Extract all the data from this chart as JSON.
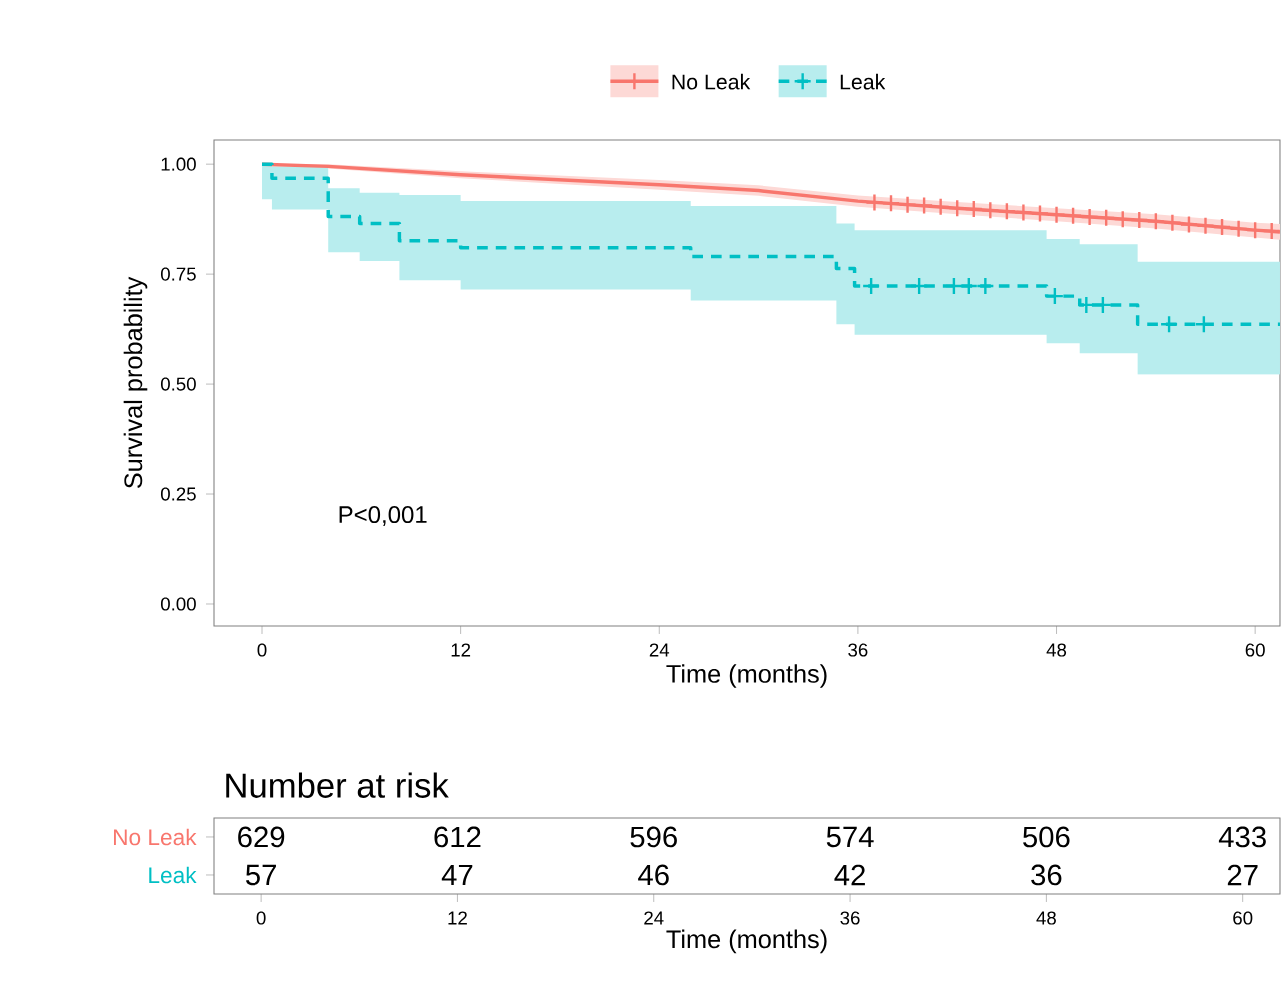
{
  "chart_data": [
    {
      "type": "step",
      "xlabel": "Time (months)",
      "ylabel": "Survival probability",
      "legend": "top",
      "grid": false,
      "xlim": [
        -2.9,
        61.5
      ],
      "ylim": [
        -0.05,
        1.055
      ],
      "xticks": [
        0,
        12,
        24,
        36,
        48,
        60
      ],
      "yticks": [
        {
          "value": 0,
          "label": "0.00"
        },
        {
          "value": 0.25,
          "label": "0.25"
        },
        {
          "value": 0.5,
          "label": "0.50"
        },
        {
          "value": 0.75,
          "label": "0.75"
        },
        {
          "value": 1,
          "label": "1.00"
        }
      ],
      "annotations": [
        "P<0,001"
      ],
      "series": [
        {
          "name": "No Leak",
          "type": "line",
          "line_style": "solid",
          "color": "#f8766d",
          "x": [
            0,
            4,
            12,
            24,
            30,
            36,
            42,
            48,
            54,
            60,
            61.5
          ],
          "values": [
            1.0,
            0.995,
            0.976,
            0.953,
            0.94,
            0.916,
            0.9,
            0.885,
            0.87,
            0.85,
            0.846
          ],
          "lower": [
            1.0,
            0.99,
            0.968,
            0.942,
            0.928,
            0.903,
            0.886,
            0.87,
            0.854,
            0.833,
            0.828
          ],
          "upper": [
            1.0,
            1.0,
            0.984,
            0.964,
            0.952,
            0.929,
            0.914,
            0.9,
            0.886,
            0.867,
            0.864
          ]
        },
        {
          "name": "Leak",
          "line_style": "dashed",
          "color": "#00bfc4",
          "x": [
            0,
            0.6,
            4,
            5.9,
            8.3,
            12,
            25.9,
            34.7,
            35.8,
            47.4,
            49.4,
            52.9,
            61.5
          ],
          "values": [
            1.0,
            0.968,
            0.881,
            0.865,
            0.826,
            0.81,
            0.79,
            0.763,
            0.723,
            0.7,
            0.68,
            0.636,
            0.636
          ],
          "lower": [
            0.92,
            0.897,
            0.8,
            0.78,
            0.736,
            0.715,
            0.69,
            0.636,
            0.612,
            0.593,
            0.57,
            0.522,
            0.522
          ],
          "upper": [
            1.0,
            0.995,
            0.945,
            0.935,
            0.93,
            0.916,
            0.905,
            0.865,
            0.85,
            0.83,
            0.818,
            0.778,
            0.778
          ]
        },
        {
          "type": "scatter",
          "marker": "cross",
          "color": "#f8766d",
          "x": [
            37,
            38,
            39,
            40,
            41,
            42,
            43,
            44,
            45,
            46,
            47,
            48,
            49,
            50,
            51,
            52,
            53,
            54,
            55,
            56,
            57,
            58,
            59,
            60,
            61
          ],
          "values": [
            0.913,
            0.911,
            0.908,
            0.906,
            0.903,
            0.9,
            0.898,
            0.895,
            0.893,
            0.89,
            0.888,
            0.885,
            0.883,
            0.88,
            0.878,
            0.875,
            0.873,
            0.87,
            0.867,
            0.863,
            0.86,
            0.857,
            0.853,
            0.85,
            0.848
          ]
        },
        {
          "type": "scatter",
          "marker": "cross",
          "color": "#00bfc4",
          "x": [
            36.8,
            39.7,
            41.8,
            42.7,
            43.7,
            47.9,
            49.8,
            50.8,
            54.8,
            56.9
          ],
          "values": [
            0.723,
            0.723,
            0.723,
            0.723,
            0.723,
            0.7,
            0.68,
            0.68,
            0.636,
            0.636
          ]
        }
      ]
    },
    {
      "type": "heatmap",
      "title": "Number at risk",
      "xlabel": "Time (months)",
      "data_labels": true,
      "categories": [
        "0",
        "12",
        "24",
        "36",
        "48",
        "60"
      ],
      "y_categories": [
        "No Leak",
        "Leak"
      ],
      "cells": [
        [
          629,
          612,
          596,
          574,
          506,
          433
        ],
        [
          57,
          47,
          46,
          42,
          36,
          27
        ]
      ]
    }
  ]
}
